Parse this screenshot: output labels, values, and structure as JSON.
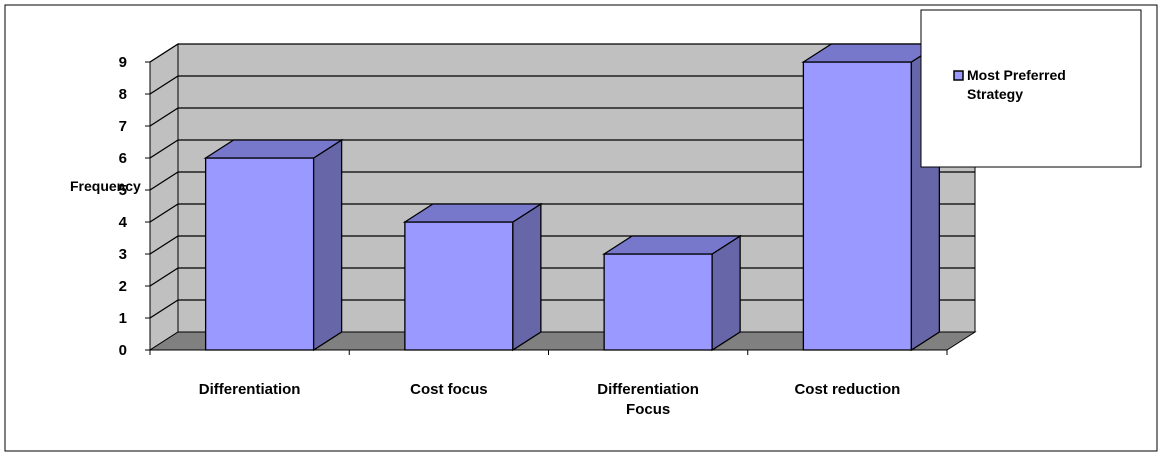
{
  "chart_data": {
    "type": "bar",
    "categories": [
      "Differentiation",
      "Cost focus",
      "Differentiation Focus",
      "Cost reduction"
    ],
    "category_lines": [
      [
        "Differentiation"
      ],
      [
        "Cost focus"
      ],
      [
        "Differentiation",
        "Focus"
      ],
      [
        "Cost reduction"
      ]
    ],
    "series": [
      {
        "name": "Most Preferred Strategy",
        "values": [
          6,
          4,
          3,
          9
        ],
        "color": "#9999ff",
        "side_color": "#6666a8",
        "top_color": "#7777cc"
      }
    ],
    "y_ticks": [
      "0",
      "1",
      "2",
      "3",
      "4",
      "5",
      "6",
      "7",
      "8",
      "9"
    ],
    "ylim": [
      0,
      9
    ],
    "ylabel": "Frequency",
    "xlabel": "",
    "title": "",
    "grid": true,
    "three_d": true,
    "legend": {
      "position": "top-right",
      "lines": [
        "Most Preferred",
        "Strategy"
      ]
    },
    "colors": {
      "back_wall": "#c0c0c0",
      "side_wall": "#c0c0c0",
      "floor": "#808080",
      "gridline": "#000000"
    }
  }
}
